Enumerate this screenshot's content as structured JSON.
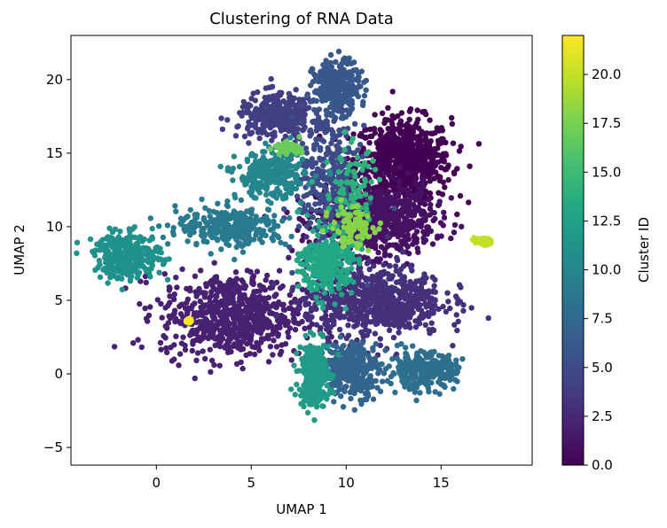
{
  "chart_data": {
    "type": "scatter",
    "title": "Clustering of RNA Data",
    "xlabel": "UMAP 1",
    "ylabel": "UMAP 2",
    "xlim": [
      -4.5,
      19.8
    ],
    "ylim": [
      -6.2,
      23.0
    ],
    "xticks": [
      0,
      5,
      10,
      15
    ],
    "yticks": [
      -5,
      0,
      5,
      10,
      15,
      20
    ],
    "grid": false,
    "colorbar": {
      "label": "Cluster ID",
      "colormap": "viridis",
      "range": [
        0,
        22
      ],
      "ticks": [
        "0.0",
        "2.5",
        "5.0",
        "7.5",
        "10.0",
        "12.5",
        "15.0",
        "17.5",
        "20.0"
      ]
    },
    "clusters": [
      {
        "id": 0,
        "center": [
          13.0,
          14.5
        ],
        "spread": [
          2.3,
          2.6
        ],
        "density": "high"
      },
      {
        "id": 1,
        "center": [
          11.5,
          10.5
        ],
        "spread": [
          2.8,
          2.2
        ],
        "density": "high"
      },
      {
        "id": 2,
        "center": [
          4.0,
          4.0
        ],
        "spread": [
          3.4,
          2.6
        ],
        "density": "high"
      },
      {
        "id": 3,
        "center": [
          11.5,
          5.0
        ],
        "spread": [
          3.3,
          2.2
        ],
        "density": "high"
      },
      {
        "id": 4,
        "center": [
          6.5,
          17.5
        ],
        "spread": [
          2.0,
          1.4
        ],
        "density": "medium"
      },
      {
        "id": 5,
        "center": [
          9.0,
          13.5
        ],
        "spread": [
          1.5,
          4.5
        ],
        "density": "medium"
      },
      {
        "id": 6,
        "center": [
          9.5,
          19.5
        ],
        "spread": [
          1.1,
          1.6
        ],
        "density": "medium"
      },
      {
        "id": 7,
        "center": [
          10.3,
          0.3
        ],
        "spread": [
          1.3,
          1.7
        ],
        "density": "medium"
      },
      {
        "id": 8,
        "center": [
          14.0,
          0.2
        ],
        "spread": [
          1.6,
          1.1
        ],
        "density": "medium"
      },
      {
        "id": 9,
        "center": [
          4.0,
          10.0
        ],
        "spread": [
          2.6,
          1.2
        ],
        "density": "medium"
      },
      {
        "id": 10,
        "center": [
          6.0,
          13.5
        ],
        "spread": [
          1.6,
          1.4
        ],
        "density": "medium"
      },
      {
        "id": 11,
        "center": [
          -1.5,
          8.0
        ],
        "spread": [
          1.6,
          1.4
        ],
        "density": "medium"
      },
      {
        "id": 12,
        "center": [
          8.3,
          0.0
        ],
        "spread": [
          0.7,
          2.0
        ],
        "density": "medium"
      },
      {
        "id": 13,
        "center": [
          9.0,
          7.5
        ],
        "spread": [
          1.2,
          2.0
        ],
        "density": "medium"
      },
      {
        "id": 14,
        "center": [
          10.2,
          12.5
        ],
        "spread": [
          1.2,
          2.8
        ],
        "density": "low"
      },
      {
        "id": 17,
        "center": [
          6.9,
          15.4
        ],
        "spread": [
          0.6,
          0.3
        ],
        "density": "low"
      },
      {
        "id": 18,
        "center": [
          10.3,
          10.0
        ],
        "spread": [
          1.0,
          1.3
        ],
        "density": "low"
      },
      {
        "id": 20,
        "center": [
          17.2,
          9.0
        ],
        "spread": [
          0.4,
          0.2
        ],
        "density": "low"
      },
      {
        "id": 22,
        "center": [
          1.7,
          3.6
        ],
        "spread": [
          0.1,
          0.1
        ],
        "density": "low"
      }
    ]
  }
}
